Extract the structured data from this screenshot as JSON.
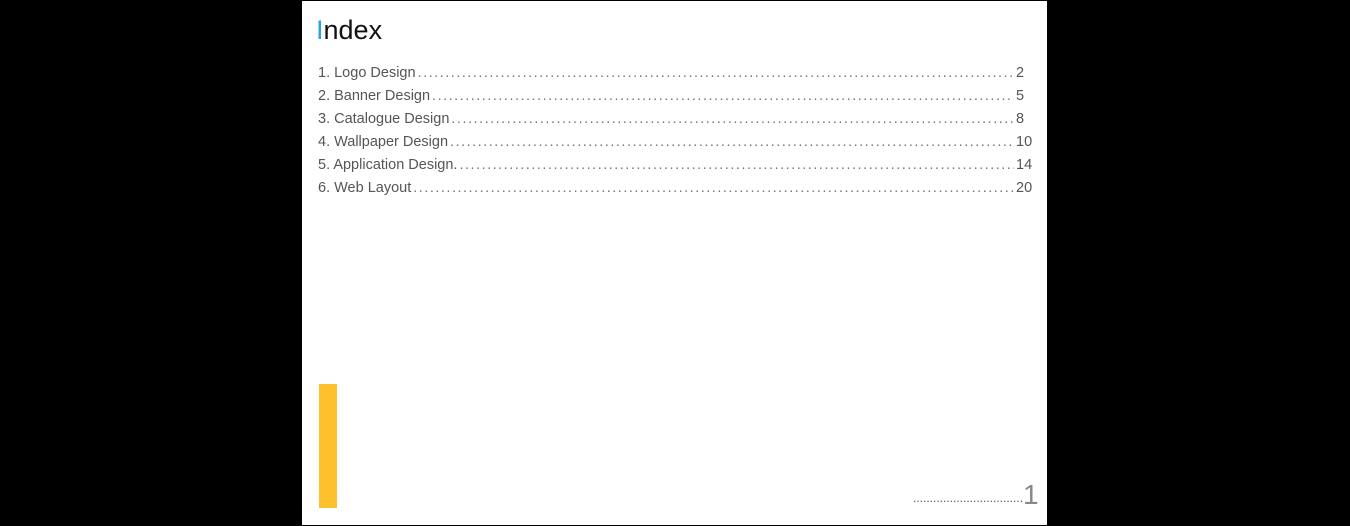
{
  "document": {
    "title_first_letter": "I",
    "title_rest": "ndex",
    "accent_color": "#2aa3d8",
    "bar_color": "#fcc12d",
    "entries": [
      {
        "label": "1. Logo Design",
        "page": "2"
      },
      {
        "label": "2. Banner Design",
        "page": "5"
      },
      {
        "label": "3. Catalogue Design",
        "page": "8"
      },
      {
        "label": "4. Wallpaper Design",
        "page": "10"
      },
      {
        "label": "5. Application Design.",
        "page": "14"
      },
      {
        "label": "6. Web Layout",
        "page": "20"
      }
    ],
    "page_number": "1"
  }
}
